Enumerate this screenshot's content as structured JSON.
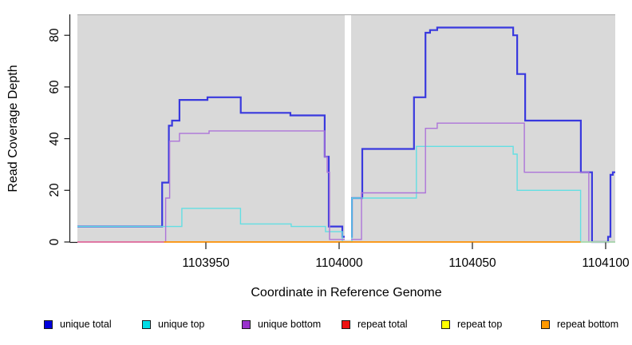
{
  "chart_data": {
    "type": "line",
    "subtype": "step-coverage",
    "title": "",
    "xlabel": "Coordinate in Reference Genome",
    "ylabel": "Read Coverage Depth",
    "x_range": [
      1103901.8,
      1104103.6
    ],
    "ylim": [
      0,
      88.1
    ],
    "x_ticks": [
      1103950,
      1104000,
      1104050,
      1104100
    ],
    "x_tick_labels": [
      "1103950",
      "1104000",
      "1104050",
      "1104100"
    ],
    "y_ticks": [
      0,
      20,
      40,
      60,
      80
    ],
    "y_tick_labels": [
      "0",
      "20",
      "40",
      "60",
      "80"
    ],
    "panel_bg": "#d9d9d9",
    "panel_border_top": "#a9a9a9",
    "axis_color": "#1a1a1a",
    "grid": false,
    "legend_position": "bottom",
    "gap": {
      "x_start": 1104002.1,
      "x_end": 1104004.5,
      "color": "#ffffff"
    },
    "series": [
      {
        "key": "unique-total",
        "name": "unique total",
        "line_color": "#3939de",
        "line_width": 2.2,
        "x_end": 1104103.6,
        "points": [
          [
            1103901.8,
            6
          ],
          [
            1103933.6,
            23
          ],
          [
            1103936.1,
            45
          ],
          [
            1103937.3,
            47
          ],
          [
            1103940.1,
            55
          ],
          [
            1103950.6,
            56
          ],
          [
            1103963.1,
            50
          ],
          [
            1103981.7,
            49
          ],
          [
            1103994.6,
            33
          ],
          [
            1103996.1,
            6
          ],
          [
            1104001.2,
            2
          ],
          [
            1104004.8,
            17
          ],
          [
            1104008.7,
            36
          ],
          [
            1104028.1,
            56
          ],
          [
            1104032.4,
            81
          ],
          [
            1104034.1,
            82
          ],
          [
            1104036.8,
            83
          ],
          [
            1104065.3,
            80
          ],
          [
            1104066.8,
            65
          ],
          [
            1104069.8,
            47
          ],
          [
            1104090.7,
            27
          ],
          [
            1104094.9,
            0
          ],
          [
            1104100.9,
            2
          ],
          [
            1104101.8,
            26
          ],
          [
            1104102.7,
            27
          ]
        ]
      },
      {
        "key": "unique-top",
        "name": "unique top",
        "line_color": "#63dfe3",
        "line_width": 1.4,
        "x_end": 1104103.6,
        "points": [
          [
            1103901.8,
            6
          ],
          [
            1103941.0,
            13
          ],
          [
            1103963.0,
            7
          ],
          [
            1103982.0,
            6
          ],
          [
            1103994.9,
            4
          ],
          [
            1104001.2,
            0
          ],
          [
            1104004.8,
            17
          ],
          [
            1104029.0,
            37
          ],
          [
            1104065.3,
            34
          ],
          [
            1104066.8,
            20
          ],
          [
            1104090.6,
            0
          ]
        ]
      },
      {
        "key": "unique-bottom",
        "name": "unique bottom",
        "line_color": "#ad74d9",
        "line_width": 1.4,
        "x_end": 1104103.6,
        "points": [
          [
            1103901.8,
            0
          ],
          [
            1103934.9,
            17
          ],
          [
            1103936.4,
            39
          ],
          [
            1103940.1,
            42
          ],
          [
            1103951.2,
            43
          ],
          [
            1103994.6,
            33
          ],
          [
            1103995.5,
            27
          ],
          [
            1103996.4,
            1
          ],
          [
            1104008.4,
            19
          ],
          [
            1104032.4,
            44
          ],
          [
            1104036.8,
            46
          ],
          [
            1104069.5,
            27
          ],
          [
            1104093.7,
            0
          ]
        ]
      },
      {
        "key": "repeat-total",
        "name": "repeat total",
        "line_color": "#e4719c",
        "line_width": 1.7,
        "x_end": 1103934.3,
        "points": [
          [
            1103901.8,
            0
          ]
        ]
      },
      {
        "key": "repeat-top",
        "name": "repeat top",
        "line_color": "#aedcab",
        "line_width": 1.7,
        "x_end": 1104103.6,
        "points": [
          [
            1104090.6,
            0
          ]
        ]
      },
      {
        "key": "repeat-bottom",
        "name": "repeat bottom",
        "line_color": "#ff9205",
        "line_width": 1.8,
        "x_end": 1104090.6,
        "points": [
          [
            1103934.3,
            0
          ]
        ]
      }
    ]
  },
  "legend": {
    "items": [
      {
        "key": "unique-total",
        "label": "unique total",
        "color": "#0000dd"
      },
      {
        "key": "unique-top",
        "label": "unique top",
        "color": "#00dde6"
      },
      {
        "key": "unique-bottom",
        "label": "unique bottom",
        "color": "#9933cc"
      },
      {
        "key": "repeat-total",
        "label": "repeat total",
        "color": "#ee1111"
      },
      {
        "key": "repeat-top",
        "label": "repeat top",
        "color": "#ffff00"
      },
      {
        "key": "repeat-bottom",
        "label": "repeat bottom",
        "color": "#ff9900"
      }
    ]
  }
}
